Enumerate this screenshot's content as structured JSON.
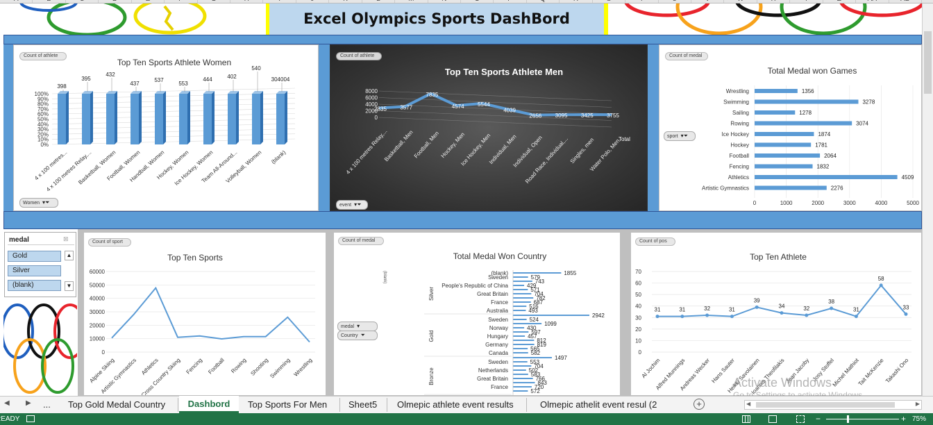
{
  "colors": {
    "accent": "#5b9bd5",
    "band": "#5b9bd5",
    "title_band": "#bdd7ee",
    "yellow": "#ffff00",
    "status_green": "#217346",
    "dark_panel": "#3a3a3a"
  },
  "columns": [
    "A",
    "B",
    "C",
    "D",
    "E",
    "F",
    "G",
    "H",
    "I",
    "J",
    "K",
    "L",
    "M",
    "N",
    "O",
    "P",
    "Q",
    "R",
    "S",
    "T",
    "U",
    "V",
    "W",
    "X",
    "Y",
    "Z",
    "AA",
    "AB"
  ],
  "dashboard_title": "Excel Olympics Sports DashBord",
  "charts": {
    "women": {
      "title": "Top Ten Sports Athlete Women",
      "value_chip": "Count of athlete",
      "filter_chip": "Women",
      "chart_data": {
        "type": "bar",
        "categories": [
          "4 x 100 metres...",
          "4 x 100 metres Relay,...",
          "Basketball, Women",
          "Football, Women",
          "Handball, Women",
          "Hockey, Women",
          "Ice Hockey, Women",
          "Team All-Around...",
          "Volleyball, Women",
          "(blank)"
        ],
        "values": [
          398,
          395,
          432,
          437,
          537,
          553,
          444,
          402,
          540,
          304004
        ],
        "yticks": [
          "0%",
          "10%",
          "20%",
          "30%",
          "40%",
          "50%",
          "60%",
          "70%",
          "80%",
          "90%",
          "100%"
        ]
      }
    },
    "men": {
      "title": "Top Ten Sports Athlete  Men",
      "value_chip": "Count of athlete",
      "filter_chip": "event",
      "legend": "Total",
      "chart_data": {
        "type": "line",
        "categories": [
          "4 x 100 metres Relay,...",
          "Basketball, Men",
          "Football, Men",
          "Hockey, Men",
          "Ice Hockey, Men",
          "Individual, Men",
          "Individual, Open",
          "Road Race, Individual,...",
          "Singles, men",
          "Water Polo, Men"
        ],
        "values": [
          2835,
          3577,
          7835,
          4574,
          5544,
          4039,
          2656,
          3095,
          3425,
          3755
        ],
        "yticks": [
          "0",
          "2000",
          "4000",
          "6000",
          "8000"
        ],
        "ylim": [
          0,
          8000
        ]
      }
    },
    "games": {
      "title": "Total Medal won Games",
      "value_chip": "Count of medal",
      "filter_chip": "sport",
      "chart_data": {
        "type": "bar",
        "orientation": "horizontal",
        "categories": [
          "Wrestling",
          "Swimming",
          "Sailing",
          "Rowing",
          "Ice Hockey",
          "Hockey",
          "Football",
          "Fencing",
          "Athletics",
          "Artistic Gymnastics"
        ],
        "values": [
          1356,
          3278,
          1278,
          3074,
          1874,
          1781,
          2064,
          1832,
          4509,
          2276
        ],
        "xticks": [
          "0",
          "1000",
          "2000",
          "3000",
          "4000",
          "5000"
        ],
        "xlim": [
          0,
          5000
        ]
      }
    },
    "sports": {
      "title": "Top Ten Sports",
      "value_chip": "Count of sport",
      "chart_data": {
        "type": "line",
        "categories": [
          "Alpine Skiing",
          "Artistic Gymnastics",
          "Athletics",
          "Cross Country Skiing",
          "Fencing",
          "Football",
          "Rowing",
          "Shooting",
          "Swimming",
          "Wrestling"
        ],
        "values": [
          10500,
          28000,
          47800,
          11000,
          12000,
          9800,
          11500,
          11500,
          26000,
          7500
        ],
        "yticks": [
          "0",
          "10000",
          "20000",
          "30000",
          "40000",
          "50000",
          "60000"
        ],
        "ylim": [
          0,
          60000
        ]
      }
    },
    "country": {
      "title": "Total Medal Won Country",
      "value_chip": "Count of medal",
      "filter_medal": "medal",
      "filter_country": "Country",
      "axis_stub": "(blank)",
      "chart_data": {
        "type": "bar",
        "orientation": "horizontal",
        "groups": [
          {
            "name": "Silver",
            "rows": [
              {
                "label": "(blank)",
                "value": 1855
              },
              {
                "label": "Sweden",
                "value": 579
              },
              {
                "label": "",
                "value": 743
              },
              {
                "label": "People's Republic of China",
                "value": 429
              },
              {
                "label": "",
                "value": 571
              },
              {
                "label": "Great Britain",
                "value": 704
              },
              {
                "label": "",
                "value": 782
              },
              {
                "label": "France",
                "value": 687
              },
              {
                "label": "",
                "value": 516
              },
              {
                "label": "Australia",
                "value": 493
              }
            ]
          },
          {
            "name": "Gold",
            "rows": [
              {
                "label": "",
                "value": 2942
              },
              {
                "label": "Sweden",
                "value": 524
              },
              {
                "label": "",
                "value": 1099
              },
              {
                "label": "Norway",
                "value": 430
              },
              {
                "label": "",
                "value": 597
              },
              {
                "label": "Hungary",
                "value": 457
              },
              {
                "label": "",
                "value": 812
              },
              {
                "label": "Germany",
                "value": 819
              },
              {
                "label": "",
                "value": 565
              },
              {
                "label": "Canada",
                "value": 582
              }
            ]
          },
          {
            "name": "Bronze",
            "rows": [
              {
                "label": "",
                "value": 1497
              },
              {
                "label": "Sweden",
                "value": 553
              },
              {
                "label": "",
                "value": 704
              },
              {
                "label": "Netherlands",
                "value": 502
              },
              {
                "label": "",
                "value": 583
              },
              {
                "label": "Great Britain",
                "value": 766
              },
              {
                "label": "",
                "value": 843
              },
              {
                "label": "France",
                "value": 720
              },
              {
                "label": "",
                "value": 572
              }
            ]
          }
        ]
      }
    },
    "athlete": {
      "title": "Top Ten Athlete",
      "value_chip": "Count of pos",
      "chart_data": {
        "type": "line",
        "categories": [
          "Al Jochim",
          "Alfred Munnings",
          "Andreas Wecker",
          "Hans Sauter",
          "Heikki Savolainen",
          "Ioannis Theofilakis",
          "Jean Jacoby",
          "Josy Stoffel",
          "Michel Mathiot",
          "Tait McKenzie",
          "Takashi Ono"
        ],
        "values": [
          31,
          31,
          32,
          31,
          39,
          34,
          32,
          38,
          31,
          58,
          33
        ],
        "yticks": [
          "0",
          "10",
          "20",
          "30",
          "40",
          "50",
          "60",
          "70"
        ],
        "ylim": [
          0,
          70
        ]
      }
    }
  },
  "slicer": {
    "title": "medal",
    "items": [
      "Gold",
      "Silver",
      "(blank)"
    ]
  },
  "tabs": [
    "Top Gold Medal Country",
    "Dashbord",
    "Top Sports For Men",
    "Sheet5",
    "Olmepic athlete event results",
    "Olmepic athelit event resul (2"
  ],
  "nav": {
    "ellipsis": "..."
  },
  "status": {
    "ready": "READY",
    "zoom": "75%",
    "minus": "−",
    "plus": "+"
  },
  "watermark": {
    "title": "Activate Windows",
    "subtitle": "Go to Settings to activate Windows."
  }
}
